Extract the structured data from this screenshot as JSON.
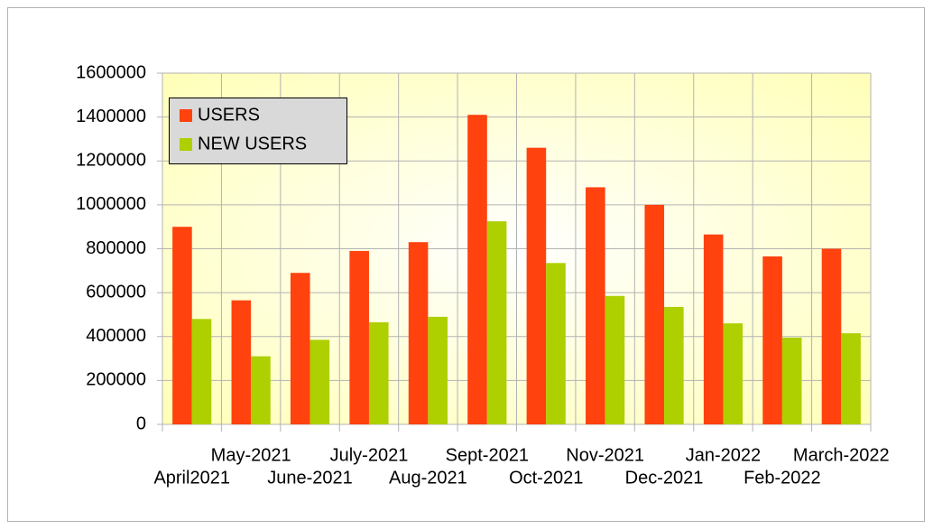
{
  "chart_data": {
    "type": "bar",
    "categories": [
      "April2021",
      "May-2021",
      "June-2021",
      "July-2021",
      "Aug-2021",
      "Sept-2021",
      "Oct-2021",
      "Nov-2021",
      "Dec-2021",
      "Jan-2022",
      "Feb-2022",
      "March-2022"
    ],
    "series": [
      {
        "name": "USERS",
        "color": "#ff420e",
        "values": [
          900000,
          565000,
          690000,
          790000,
          830000,
          1410000,
          1260000,
          1080000,
          1000000,
          865000,
          765000,
          800000
        ]
      },
      {
        "name": "NEW USERS",
        "color": "#aecf00",
        "values": [
          480000,
          310000,
          385000,
          465000,
          490000,
          925000,
          735000,
          585000,
          535000,
          460000,
          395000,
          415000
        ]
      }
    ],
    "ylim": [
      0,
      1600000
    ],
    "yticks": [
      0,
      200000,
      400000,
      600000,
      800000,
      1000000,
      1200000,
      1400000,
      1600000
    ],
    "grid": true,
    "legend": "upper left"
  }
}
